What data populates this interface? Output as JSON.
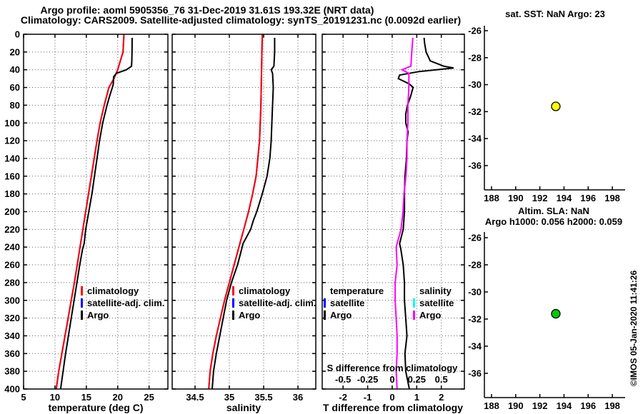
{
  "titles": {
    "line1": "Argo profile: aoml 5905356_76 31-Dec-2019 31.61S 193.32E (NRT data)",
    "line2": "Climatology: CARS2009. Satellite-adjusted climatology: synTS_20191231.nc (0.0092d earlier)"
  },
  "credit": "©IMOS 05-Jan-2020 11:41:26",
  "colors": {
    "climatology": "#ff0000",
    "satellite": "#0000ff",
    "argo": "#000000",
    "salinity_satellite": "#00ffff",
    "salinity_argo": "#ff00ff",
    "sst_marker": "#ffff00",
    "sla_marker": "#00cc00",
    "axis": "#000000"
  },
  "chart_data": [
    {
      "id": "temperature",
      "type": "line",
      "xlabel": "temperature (deg C)",
      "xlim": [
        5,
        28
      ],
      "xticks": [
        5,
        10,
        15,
        20,
        25
      ],
      "ylim": [
        0,
        400
      ],
      "yticks": [
        0,
        20,
        40,
        60,
        80,
        100,
        120,
        140,
        160,
        180,
        200,
        220,
        240,
        260,
        280,
        300,
        320,
        340,
        360,
        380,
        400
      ],
      "show_ytick_labels": true,
      "grid": true,
      "legend": [
        {
          "label": "climatology",
          "color": "climatology"
        },
        {
          "label": "satellite-adj. clim.",
          "color": "satellite"
        },
        {
          "label": "Argo",
          "color": "argo"
        }
      ],
      "series": [
        {
          "name": "satellite-adj. clim.",
          "color": "satellite",
          "depth": [
            0,
            20,
            40,
            50,
            60,
            80,
            100,
            120,
            140,
            160,
            180,
            200,
            220,
            240,
            260,
            280,
            300,
            320,
            340,
            360,
            380,
            400
          ],
          "values": [
            21.0,
            20.85,
            20.0,
            19.4,
            18.6,
            17.85,
            17.2,
            16.7,
            16.25,
            15.8,
            15.35,
            14.9,
            14.45,
            14.0,
            13.55,
            13.1,
            12.6,
            12.1,
            11.6,
            11.1,
            10.6,
            10.2
          ]
        },
        {
          "name": "climatology",
          "color": "climatology",
          "depth": [
            0,
            20,
            40,
            50,
            60,
            80,
            100,
            120,
            140,
            160,
            180,
            200,
            220,
            240,
            260,
            280,
            300,
            320,
            340,
            360,
            380,
            400
          ],
          "values": [
            21.0,
            20.85,
            20.0,
            19.4,
            18.6,
            17.85,
            17.2,
            16.7,
            16.25,
            15.8,
            15.35,
            14.9,
            14.45,
            14.0,
            13.55,
            13.1,
            12.6,
            12.1,
            11.6,
            11.1,
            10.6,
            10.2
          ]
        },
        {
          "name": "Argo",
          "color": "argo",
          "depth": [
            4,
            10,
            20,
            30,
            36,
            40,
            44,
            48,
            56,
            60,
            70,
            80,
            100,
            120,
            140,
            160,
            180,
            200,
            220,
            236,
            242,
            260,
            280,
            300,
            320,
            340,
            360,
            380,
            400
          ],
          "values": [
            22.3,
            22.3,
            22.28,
            22.25,
            22.2,
            21.4,
            19.8,
            19.35,
            19.3,
            19.15,
            18.7,
            18.3,
            17.6,
            17.1,
            16.7,
            16.3,
            15.9,
            15.4,
            14.9,
            14.65,
            14.4,
            13.95,
            13.5,
            13.05,
            12.6,
            12.15,
            11.7,
            11.3,
            10.9
          ]
        }
      ]
    },
    {
      "id": "salinity",
      "type": "line",
      "xlabel": "salinity",
      "xlim": [
        34.167,
        36.26
      ],
      "xticks": [
        34.5,
        35,
        35.5,
        36
      ],
      "ylim": [
        0,
        400
      ],
      "yticks": [
        0,
        20,
        40,
        60,
        80,
        100,
        120,
        140,
        160,
        180,
        200,
        220,
        240,
        260,
        280,
        300,
        320,
        340,
        360,
        380,
        400
      ],
      "show_ytick_labels": false,
      "grid": true,
      "legend": [
        {
          "label": "climatology",
          "color": "climatology"
        },
        {
          "label": "satellite-adj. clim.",
          "color": "satellite"
        },
        {
          "label": "Argo",
          "color": "argo"
        }
      ],
      "series": [
        {
          "name": "satellite-adj. clim.",
          "color": "satellite",
          "depth": [
            0,
            40,
            80,
            120,
            160,
            180,
            200,
            220,
            240,
            260,
            280,
            300,
            320,
            340,
            360,
            380,
            400
          ],
          "values": [
            35.48,
            35.47,
            35.46,
            35.44,
            35.39,
            35.34,
            35.28,
            35.21,
            35.14,
            35.07,
            35.0,
            34.93,
            34.87,
            34.81,
            34.76,
            34.72,
            34.7
          ]
        },
        {
          "name": "climatology",
          "color": "climatology",
          "depth": [
            0,
            40,
            80,
            120,
            160,
            180,
            200,
            220,
            240,
            260,
            280,
            300,
            320,
            340,
            360,
            380,
            400
          ],
          "values": [
            35.48,
            35.47,
            35.46,
            35.44,
            35.39,
            35.34,
            35.28,
            35.21,
            35.14,
            35.07,
            35.0,
            34.93,
            34.87,
            34.81,
            34.76,
            34.72,
            34.7
          ]
        },
        {
          "name": "Argo",
          "color": "argo",
          "depth": [
            4,
            20,
            36,
            40,
            44,
            60,
            80,
            100,
            120,
            140,
            160,
            180,
            200,
            210,
            220,
            236,
            242,
            260,
            280,
            300,
            320,
            340,
            360,
            380,
            400
          ],
          "values": [
            35.66,
            35.66,
            35.65,
            35.61,
            35.63,
            35.64,
            35.63,
            35.62,
            35.61,
            35.59,
            35.55,
            35.48,
            35.4,
            35.35,
            35.31,
            35.2,
            35.18,
            35.12,
            35.03,
            34.96,
            34.91,
            34.86,
            34.81,
            34.77,
            34.75
          ]
        }
      ]
    },
    {
      "id": "difference",
      "type": "line",
      "xlabel": "T difference from climatology",
      "xlim": [
        -2.85,
        2.94
      ],
      "xticks": [
        -2,
        -1,
        0,
        1,
        2
      ],
      "ylim": [
        0,
        400
      ],
      "yticks": [
        0,
        20,
        40,
        60,
        80,
        100,
        120,
        140,
        160,
        180,
        200,
        220,
        240,
        260,
        280,
        300,
        320,
        340,
        360,
        380,
        400
      ],
      "show_ytick_labels": false,
      "grid": true,
      "secondary_axis": {
        "label": "S difference from climatology",
        "ticks": [
          -0.5,
          -0.25,
          0,
          0.25,
          0.5
        ],
        "scale_to_primary": 4
      },
      "legend_temperature": [
        {
          "label": "temperature"
        },
        {
          "label": "satellite",
          "color": "satellite"
        },
        {
          "label": "Argo",
          "color": "argo"
        }
      ],
      "legend_salinity": [
        {
          "label": "salinity"
        },
        {
          "label": "satellite",
          "color": "salinity_satellite"
        },
        {
          "label": "Argo",
          "color": "salinity_argo"
        }
      ],
      "series": [
        {
          "name": "T difference Argo",
          "color": "argo",
          "depth": [
            4,
            10,
            20,
            30,
            36,
            38,
            42,
            46,
            50,
            56,
            60,
            70,
            80,
            90,
            100,
            110,
            120,
            140,
            160,
            180,
            200,
            220,
            236,
            242,
            260,
            280,
            300,
            320,
            340,
            360,
            380,
            400
          ],
          "values": [
            1.3,
            1.32,
            1.38,
            1.55,
            2.1,
            2.5,
            1.1,
            0.3,
            0.25,
            0.7,
            0.85,
            0.75,
            0.62,
            0.55,
            0.55,
            0.65,
            0.6,
            0.58,
            0.52,
            0.5,
            0.5,
            0.45,
            0.3,
            0.35,
            0.45,
            0.5,
            0.5,
            0.55,
            0.6,
            0.52,
            0.55,
            0.7
          ]
        },
        {
          "name": "S difference Argo",
          "color": "salinity_argo",
          "scale_to_primary": 4,
          "depth": [
            4,
            20,
            36,
            40,
            44,
            60,
            80,
            100,
            120,
            140,
            160,
            180,
            200,
            220,
            240,
            260,
            280,
            300,
            320,
            340,
            360,
            380,
            400
          ],
          "values": [
            0.21,
            0.2,
            0.19,
            0.1,
            0.17,
            0.17,
            0.16,
            0.16,
            0.15,
            0.15,
            0.14,
            0.12,
            0.11,
            0.09,
            0.04,
            0.05,
            0.03,
            0.03,
            0.04,
            0.05,
            0.05,
            0.04,
            0.05
          ]
        }
      ]
    },
    {
      "id": "sst-map",
      "type": "scatter",
      "title": "sat. SST: NaN Argo: 23",
      "xlim": [
        187.41,
        199.06
      ],
      "xticks": [
        188,
        190,
        192,
        194,
        196,
        198
      ],
      "ylim": [
        -25.63,
        -37.8
      ],
      "yticks": [
        -26,
        -28,
        -30,
        -32,
        -34,
        -36
      ],
      "show_ytick_labels": true,
      "grid": false,
      "points": [
        {
          "x": 193.32,
          "y": -31.61,
          "color": "sst_marker"
        }
      ]
    },
    {
      "id": "sla-map",
      "type": "scatter",
      "title_line1": "Altim. SLA: NaN",
      "title_line2": "Argo h1000: 0.056 h2000: 0.059",
      "xlim": [
        187.41,
        199.06
      ],
      "xticks": [
        188,
        190,
        192,
        194,
        196,
        198
      ],
      "ylim": [
        -25.58,
        -37.79
      ],
      "yticks": [
        -26,
        -28,
        -30,
        -32,
        -34,
        -36
      ],
      "show_ytick_labels": true,
      "grid": false,
      "points": [
        {
          "x": 193.32,
          "y": -31.61,
          "color": "sla_marker"
        }
      ]
    }
  ]
}
